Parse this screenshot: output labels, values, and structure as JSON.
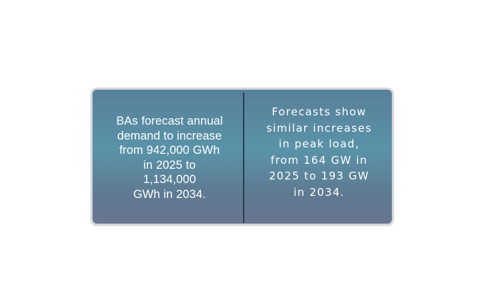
{
  "callout": {
    "left_text": "BAs forecast annual\ndemand to increase\nfrom 942,000 GWh\nin 2025 to\n1,134,000\nGWh in 2034.",
    "right_text": "Forecasts show\nsimilar increases\nin peak load,\nfrom 164 GW in\n2025 to 193 GW\nin 2034."
  },
  "colors": {
    "card_top": "#58809a",
    "card_middle": "#5a93a8",
    "card_bottom": "#6a7590",
    "border": "#d3d6dc",
    "divider": "#2a3f50",
    "text": "#ffffff"
  }
}
